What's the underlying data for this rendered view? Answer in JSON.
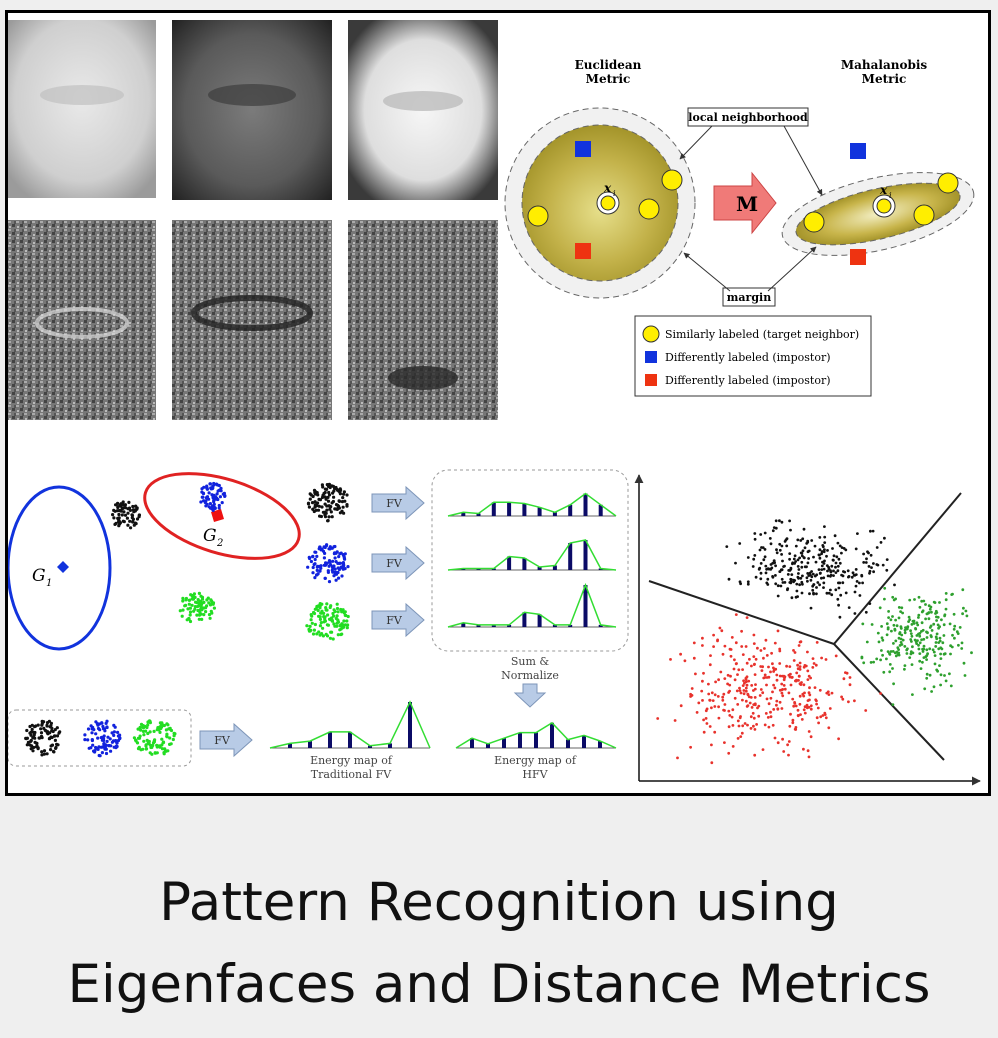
{
  "caption": {
    "line1": "Pattern Recognition using",
    "line2": "Eigenfaces and Distance Metrics"
  },
  "metric": {
    "euclidean_title_1": "Euclidean",
    "euclidean_title_2": "Metric",
    "mahalanobis_title_1": "Mahalanobis",
    "mahalanobis_title_2": "Metric",
    "local_neighborhood": "local neighborhood",
    "margin": "margin",
    "transform_label": "M",
    "point_label": "x",
    "point_subscript": "i",
    "legend": [
      {
        "color": "#ffee00",
        "shape": "circle",
        "text": "Similarly labeled (target neighbor)"
      },
      {
        "color": "#1133dd",
        "shape": "square",
        "text": "Differently labeled (impostor)"
      },
      {
        "color": "#ee3311",
        "shape": "square",
        "text": "Differently labeled (impostor)"
      }
    ]
  },
  "hfv": {
    "g1": "G",
    "g1_sub": "1",
    "g2": "G",
    "g2_sub": "2",
    "fv_label": "FV",
    "sum_normalize_1": "Sum &",
    "sum_normalize_2": "Normalize",
    "energy_traditional_1": "Energy map of",
    "energy_traditional_2": "Traditional FV",
    "energy_hfv_1": "Energy map of",
    "energy_hfv_2": "HFV",
    "histograms": [
      [
        0.15,
        0.1,
        0.55,
        0.55,
        0.5,
        0.35,
        0.15,
        0.45,
        0.9,
        0.45
      ],
      [
        0.05,
        0.05,
        0.05,
        0.45,
        0.4,
        0.1,
        0.15,
        0.9,
        1.0,
        0.05
      ],
      [
        0.1,
        0.05,
        0.05,
        0.05,
        0.35,
        0.3,
        0.05,
        0.05,
        1.0,
        0.05
      ]
    ],
    "traditional": [
      0.1,
      0.15,
      0.35,
      0.35,
      0.05,
      0.1,
      1.0
    ],
    "normalized": [
      0.35,
      0.15,
      0.35,
      0.55,
      0.55,
      0.9,
      0.3,
      0.45,
      0.25
    ]
  },
  "scatter_colors": {
    "cluster_black": "#111111",
    "cluster_red": "#e8322c",
    "cluster_green": "#2ea02e",
    "blue": "#1122dd",
    "green_blob": "#22dd22"
  }
}
